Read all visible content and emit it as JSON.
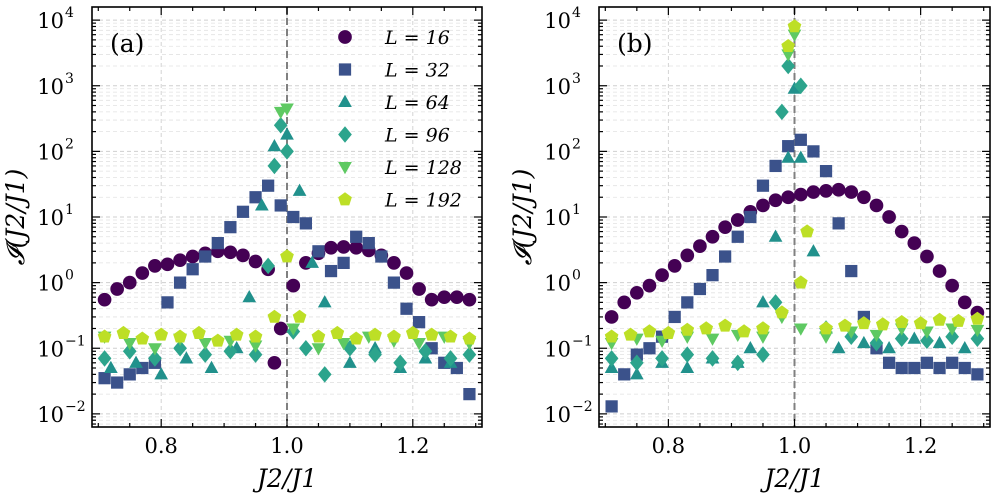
{
  "chart_data": [
    {
      "type": "scatter",
      "panel_label": "(a)",
      "xlabel": "J2/J1",
      "ylabel": "𝓘(J2/J1)",
      "xlim": [
        0.69,
        1.31
      ],
      "ylim_log10": [
        -2.2,
        4.2
      ],
      "yscale": "log",
      "x_ticks": [
        0.8,
        1.0,
        1.2
      ],
      "x_tick_labels": [
        "0.8",
        "1.0",
        "1.2"
      ],
      "y_tick_exponents": [
        -2,
        -1,
        0,
        1,
        2,
        3,
        4
      ],
      "y_tick_labels": [
        "10",
        "10",
        "10",
        "10",
        "10",
        "10",
        "10"
      ],
      "grid": true,
      "vline": 1.0,
      "legend": [
        "L = 16",
        "L = 32",
        "L = 64",
        "L = 96",
        "L = 128",
        "L = 192"
      ],
      "legend_location": "top-right",
      "series": [
        {
          "name": "L = 16",
          "marker": "circle",
          "color": "#440154",
          "x": [
            0.71,
            0.73,
            0.75,
            0.77,
            0.79,
            0.81,
            0.83,
            0.85,
            0.87,
            0.89,
            0.91,
            0.93,
            0.95,
            0.97,
            0.98,
            0.99,
            1.01,
            1.03,
            1.05,
            1.07,
            1.09,
            1.11,
            1.13,
            1.15,
            1.17,
            1.19,
            1.21,
            1.23,
            1.25,
            1.27,
            1.29
          ],
          "y": [
            0.55,
            0.8,
            1.0,
            1.4,
            1.8,
            1.9,
            2.2,
            2.5,
            2.8,
            3.0,
            2.9,
            2.6,
            2.1,
            1.6,
            0.06,
            0.2,
            0.9,
            2.0,
            2.8,
            3.4,
            3.5,
            3.4,
            3.1,
            2.6,
            2.0,
            1.4,
            0.8,
            0.55,
            0.6,
            0.6,
            0.55
          ]
        },
        {
          "name": "L = 32",
          "marker": "square",
          "color": "#3b528b",
          "x": [
            0.71,
            0.73,
            0.75,
            0.77,
            0.79,
            0.81,
            0.83,
            0.85,
            0.87,
            0.89,
            0.91,
            0.93,
            0.95,
            0.97,
            0.99,
            1.01,
            1.03,
            1.05,
            1.07,
            1.09,
            1.11,
            1.13,
            1.15,
            1.17,
            1.19,
            1.21,
            1.23,
            1.25,
            1.27,
            1.29
          ],
          "y": [
            0.035,
            0.03,
            0.04,
            0.05,
            0.06,
            0.5,
            1.0,
            1.6,
            2.5,
            4.0,
            7.0,
            12.0,
            20.0,
            30.0,
            15.0,
            10.0,
            8.0,
            3.0,
            1.5,
            2.0,
            5.0,
            4.0,
            2.5,
            1.0,
            0.4,
            0.25,
            0.1,
            0.06,
            0.05,
            0.02
          ]
        },
        {
          "name": "L = 64",
          "marker": "triangle-up",
          "color": "#21918c",
          "x": [
            0.72,
            0.76,
            0.8,
            0.84,
            0.88,
            0.92,
            0.94,
            0.96,
            0.98,
            1.0,
            1.02,
            1.04,
            1.06,
            1.1,
            1.14,
            1.18,
            1.22,
            1.26
          ],
          "y": [
            0.05,
            0.06,
            0.04,
            0.07,
            0.05,
            0.1,
            0.6,
            15.0,
            120.0,
            180.0,
            25.0,
            2.0,
            0.5,
            0.06,
            0.1,
            0.05,
            0.07,
            0.06
          ]
        },
        {
          "name": "L = 96",
          "marker": "diamond",
          "color": "#2ca48c",
          "x": [
            0.71,
            0.75,
            0.79,
            0.83,
            0.87,
            0.91,
            0.95,
            0.97,
            0.98,
            0.99,
            1.0,
            1.01,
            1.03,
            1.06,
            1.1,
            1.14,
            1.18,
            1.22,
            1.26,
            1.29
          ],
          "y": [
            0.07,
            0.09,
            0.07,
            0.1,
            0.08,
            0.09,
            0.08,
            1.8,
            60.0,
            250.0,
            100.0,
            0.18,
            0.1,
            0.04,
            0.1,
            0.08,
            0.06,
            0.09,
            0.07,
            0.08
          ]
        },
        {
          "name": "L = 128",
          "marker": "triangle-down",
          "color": "#5ec962",
          "x": [
            0.71,
            0.75,
            0.79,
            0.83,
            0.87,
            0.91,
            0.95,
            0.99,
            1.0,
            1.01,
            1.05,
            1.09,
            1.13,
            1.17,
            1.21,
            1.25,
            1.29
          ],
          "y": [
            0.15,
            0.12,
            0.1,
            0.14,
            0.12,
            0.13,
            0.11,
            400.0,
            450.0,
            0.2,
            0.1,
            0.12,
            0.15,
            0.13,
            0.12,
            0.15,
            0.12
          ]
        },
        {
          "name": "L = 192",
          "marker": "pentagon",
          "color": "#bddf26",
          "x": [
            0.71,
            0.74,
            0.77,
            0.8,
            0.83,
            0.86,
            0.89,
            0.92,
            0.95,
            0.98,
            1.0,
            1.02,
            1.05,
            1.08,
            1.11,
            1.14,
            1.17,
            1.2,
            1.23,
            1.26,
            1.29
          ],
          "y": [
            0.15,
            0.17,
            0.14,
            0.16,
            0.15,
            0.17,
            0.13,
            0.16,
            0.15,
            0.3,
            2.5,
            0.3,
            0.15,
            0.17,
            0.14,
            0.16,
            0.15,
            0.17,
            0.16,
            0.15,
            0.14
          ]
        }
      ]
    },
    {
      "type": "scatter",
      "panel_label": "(b)",
      "xlabel": "J2/J1",
      "ylabel": "𝓘(J2/J1)",
      "xlim": [
        0.69,
        1.31
      ],
      "ylim_log10": [
        -2.2,
        4.2
      ],
      "yscale": "log",
      "x_ticks": [
        0.8,
        1.0,
        1.2
      ],
      "x_tick_labels": [
        "0.8",
        "1.0",
        "1.2"
      ],
      "y_tick_exponents": [
        -2,
        -1,
        0,
        1,
        2,
        3,
        4
      ],
      "y_tick_labels": [
        "10",
        "10",
        "10",
        "10",
        "10",
        "10",
        "10"
      ],
      "grid": true,
      "vline": 1.0,
      "series": [
        {
          "name": "L = 16",
          "marker": "circle",
          "color": "#440154",
          "x": [
            0.71,
            0.73,
            0.75,
            0.77,
            0.79,
            0.81,
            0.83,
            0.85,
            0.87,
            0.89,
            0.91,
            0.93,
            0.95,
            0.97,
            0.99,
            1.01,
            1.03,
            1.05,
            1.07,
            1.09,
            1.11,
            1.13,
            1.15,
            1.17,
            1.19,
            1.21,
            1.23,
            1.25,
            1.27,
            1.29
          ],
          "y": [
            0.3,
            0.5,
            0.7,
            0.9,
            1.3,
            1.8,
            2.6,
            3.6,
            5.0,
            7.0,
            9.0,
            12.0,
            15.0,
            18.0,
            20.0,
            22.0,
            24.0,
            25.0,
            26.0,
            24.0,
            20.0,
            15.0,
            10.0,
            6.0,
            4.0,
            2.5,
            1.5,
            0.9,
            0.5,
            0.35
          ]
        },
        {
          "name": "L = 32",
          "marker": "square",
          "color": "#3b528b",
          "x": [
            0.71,
            0.73,
            0.75,
            0.77,
            0.79,
            0.81,
            0.83,
            0.85,
            0.87,
            0.89,
            0.91,
            0.93,
            0.95,
            0.97,
            0.99,
            1.01,
            1.03,
            1.05,
            1.07,
            1.09,
            1.11,
            1.13,
            1.15,
            1.17,
            1.19,
            1.21,
            1.23,
            1.25,
            1.27,
            1.29
          ],
          "y": [
            0.013,
            0.04,
            0.08,
            0.1,
            0.15,
            0.3,
            0.5,
            0.8,
            1.3,
            2.5,
            5.0,
            10.0,
            30.0,
            60.0,
            120.0,
            150.0,
            100.0,
            50.0,
            8.0,
            1.5,
            0.3,
            0.1,
            0.06,
            0.05,
            0.05,
            0.06,
            0.05,
            0.06,
            0.05,
            0.04
          ]
        },
        {
          "name": "L = 64",
          "marker": "triangle-up",
          "color": "#21918c",
          "x": [
            0.71,
            0.75,
            0.79,
            0.83,
            0.87,
            0.91,
            0.93,
            0.95,
            0.97,
            0.99,
            1.0,
            1.01,
            1.03,
            1.05,
            1.07,
            1.11,
            1.15,
            1.19,
            1.23,
            1.27
          ],
          "y": [
            0.05,
            0.04,
            0.06,
            0.05,
            0.07,
            0.06,
            0.1,
            0.5,
            5.0,
            80.0,
            900.0,
            80.0,
            3.0,
            0.2,
            0.1,
            0.12,
            0.1,
            0.14,
            0.12,
            0.1
          ]
        },
        {
          "name": "L = 96",
          "marker": "diamond",
          "color": "#2ca48c",
          "x": [
            0.71,
            0.75,
            0.79,
            0.83,
            0.87,
            0.91,
            0.95,
            0.97,
            0.98,
            0.99,
            1.01,
            1.05,
            1.09,
            1.13,
            1.17,
            1.21,
            1.25,
            1.29
          ],
          "y": [
            0.07,
            0.06,
            0.07,
            0.08,
            0.07,
            0.06,
            0.08,
            0.5,
            400.0,
            2000.0,
            1000.0,
            0.2,
            0.15,
            0.12,
            0.14,
            0.13,
            0.15,
            0.14
          ]
        },
        {
          "name": "L = 128",
          "marker": "triangle-down",
          "color": "#5ec962",
          "x": [
            0.71,
            0.75,
            0.79,
            0.83,
            0.87,
            0.91,
            0.95,
            0.98,
            0.99,
            1.0,
            1.01,
            1.05,
            1.09,
            1.13,
            1.17,
            1.21,
            1.25,
            1.29
          ],
          "y": [
            0.12,
            0.14,
            0.13,
            0.15,
            0.14,
            0.16,
            0.15,
            0.3,
            3000.0,
            6000.0,
            0.2,
            0.15,
            0.18,
            0.16,
            0.2,
            0.18,
            0.2,
            0.19
          ]
        },
        {
          "name": "L = 192",
          "marker": "pentagon",
          "color": "#bddf26",
          "x": [
            0.71,
            0.74,
            0.77,
            0.8,
            0.83,
            0.86,
            0.89,
            0.92,
            0.95,
            0.98,
            0.99,
            1.0,
            1.01,
            1.02,
            1.05,
            1.08,
            1.11,
            1.14,
            1.17,
            1.2,
            1.23,
            1.26,
            1.29
          ],
          "y": [
            0.15,
            0.16,
            0.18,
            0.17,
            0.19,
            0.2,
            0.22,
            0.18,
            0.2,
            0.35,
            4000.0,
            8000.0,
            1.0,
            6.0,
            0.2,
            0.22,
            0.24,
            0.23,
            0.25,
            0.24,
            0.27,
            0.26,
            0.28
          ]
        }
      ]
    }
  ]
}
